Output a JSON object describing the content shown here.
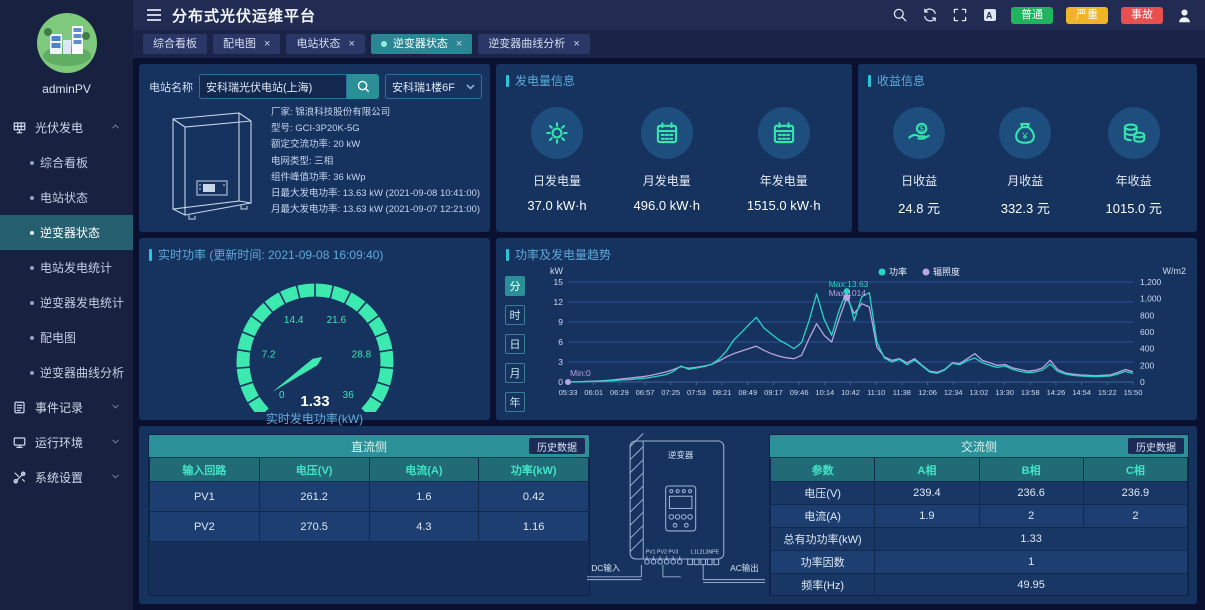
{
  "app": {
    "title": "分布式光伏运维平台",
    "user": "adminPV"
  },
  "header": {
    "icons": [
      "search-icon",
      "refresh-icon",
      "fullscreen-icon",
      "translate-icon",
      "user-icon"
    ],
    "badges": [
      {
        "label": "普通",
        "color": "#21b45f"
      },
      {
        "label": "严重",
        "color": "#f0b429"
      },
      {
        "label": "事故",
        "color": "#ea4f4f"
      }
    ]
  },
  "sidebar": {
    "menu": [
      {
        "label": "光伏发电",
        "icon": "solar-panel-icon",
        "expanded": true,
        "children": [
          "综合看板",
          "电站状态",
          "逆变器状态",
          "电站发电统计",
          "逆变器发电统计",
          "配电图",
          "逆变器曲线分析"
        ],
        "active_child": "逆变器状态"
      },
      {
        "label": "事件记录",
        "icon": "event-log-icon",
        "expanded": false
      },
      {
        "label": "运行环境",
        "icon": "environment-icon",
        "expanded": false
      },
      {
        "label": "系统设置",
        "icon": "settings-icon",
        "expanded": false
      }
    ]
  },
  "tabs": [
    {
      "label": "综合看板",
      "closable": false,
      "active": false
    },
    {
      "label": "配电图",
      "closable": true,
      "active": false
    },
    {
      "label": "电站状态",
      "closable": true,
      "active": false
    },
    {
      "label": "逆变器状态",
      "closable": true,
      "active": true
    },
    {
      "label": "逆变器曲线分析",
      "closable": true,
      "active": false
    }
  ],
  "panels": {
    "station": {
      "label_station_name": "电站名称",
      "search_value": "安科瑞光伏电站(上海)",
      "select_value": "安科瑞1楼6F",
      "specs": [
        {
          "label": "厂家",
          "value": "锦浪科技股份有限公司"
        },
        {
          "label": "型号",
          "value": "GCI-3P20K-5G"
        },
        {
          "label": "额定交流功率",
          "value": "20 kW"
        },
        {
          "label": "电网类型",
          "value": "三相"
        },
        {
          "label": "组件峰值功率",
          "value": "36 kWp"
        },
        {
          "label": "日最大发电功率",
          "value": "13.63 kW (2021-09-08 10:41:00)"
        },
        {
          "label": "月最大发电功率",
          "value": "13.63 kW (2021-09-07 12:21:00)"
        }
      ]
    },
    "energy": {
      "title": "发电量信息",
      "stats": [
        {
          "icon": "sun-icon",
          "label": "日发电量",
          "value": "37.0 kW·h"
        },
        {
          "icon": "calendar-icon",
          "label": "月发电量",
          "value": "496.0 kW·h"
        },
        {
          "icon": "calendar-icon",
          "label": "年发电量",
          "value": "1515.0 kW·h"
        }
      ]
    },
    "revenue": {
      "title": "收益信息",
      "stats": [
        {
          "icon": "hand-coin-icon",
          "label": "日收益",
          "value": "24.8 元"
        },
        {
          "icon": "money-bag-icon",
          "label": "月收益",
          "value": "332.3 元"
        },
        {
          "icon": "coins-icon",
          "label": "年收益",
          "value": "1015.0 元"
        }
      ]
    },
    "gauge": {
      "title": "实时功率 (更新时间: 2021-09-08 16:09:40)",
      "value": 1.33,
      "value_text": "1.33",
      "unit_label": "实时发电功率(kW)",
      "min": 0,
      "max": 36,
      "ticks": [
        0,
        7.2,
        14.4,
        21.6,
        28.8,
        36
      ]
    },
    "trend": {
      "title": "功率及发电量趋势",
      "period_tabs": [
        "分",
        "时",
        "日",
        "月",
        "年"
      ],
      "active_period": "分"
    },
    "dc": {
      "title": "直流侧",
      "history_button": "历史数据",
      "headers": [
        "输入回路",
        "电压(V)",
        "电流(A)",
        "功率(kW)"
      ],
      "rows": [
        [
          "PV1",
          "261.2",
          "1.6",
          "0.42"
        ],
        [
          "PV2",
          "270.5",
          "4.3",
          "1.16"
        ]
      ]
    },
    "ac": {
      "title": "交流侧",
      "history_button": "历史数据",
      "headers": [
        "参数",
        "A相",
        "B相",
        "C相"
      ],
      "rows": [
        {
          "label": "电压(V)",
          "cells": [
            "239.4",
            "236.6",
            "236.9"
          ]
        },
        {
          "label": "电流(A)",
          "cells": [
            "1.9",
            "2",
            "2"
          ]
        },
        {
          "label": "总有功功率(kW)",
          "cells": [
            "1.33"
          ]
        },
        {
          "label": "功率因数",
          "cells": [
            "1"
          ]
        },
        {
          "label": "频率(Hz)",
          "cells": [
            "49.95"
          ]
        }
      ]
    },
    "inverter_diagram": {
      "title": "逆变器",
      "dc_label": "DC输入",
      "ac_label": "AC输出",
      "pv_terminals": [
        "PV1",
        "PV2",
        "PV3"
      ],
      "ac_terminals": "L1L2L3NPE"
    }
  },
  "chart_data": {
    "type": "line",
    "title": "功率及发电量趋势",
    "x_labels": [
      "05:33",
      "06:01",
      "06:29",
      "06:57",
      "07:25",
      "07:53",
      "08:21",
      "08:49",
      "09:17",
      "09:46",
      "10:14",
      "10:42",
      "11:10",
      "11:38",
      "12:06",
      "12:34",
      "13:02",
      "13:30",
      "13:58",
      "14:26",
      "14:54",
      "15:22",
      "15:50"
    ],
    "left_axis": {
      "label": "kW",
      "min": 0,
      "max": 15,
      "ticks": [
        0,
        3,
        6,
        9,
        12,
        15
      ]
    },
    "right_axis": {
      "label": "W/m2",
      "min": 0,
      "max": 1200,
      "ticks": [
        0,
        200,
        400,
        600,
        800,
        1000,
        1200
      ]
    },
    "legend_position": "top",
    "grid": true,
    "annotations": {
      "power_max": "Max:13.63",
      "irr_max": "Max:1014",
      "irr_min": "Min:0"
    },
    "series": [
      {
        "name": "功率",
        "color": "#25d6c5",
        "axis": "left",
        "values": [
          0,
          0.02,
          0.05,
          0.08,
          0.1,
          0.15,
          0.2,
          0.3,
          0.35,
          0.45,
          0.55,
          0.7,
          0.9,
          1.1,
          1.6,
          2.4,
          1.9,
          2.1,
          2.3,
          2.6,
          3.4,
          4.6,
          6.3,
          7.4,
          8.6,
          9.7,
          8.1,
          7.2,
          6.3,
          5.7,
          5.0,
          5.9,
          9.2,
          13.2,
          9.4,
          7.0,
          10.8,
          13.63,
          9.2,
          12.8,
          13.4,
          6.0,
          3.6,
          3.0,
          3.4,
          2.6,
          3.3,
          2.4,
          1.5,
          1.3,
          1.8,
          2.8,
          2.6,
          3.2,
          3.6,
          2.9,
          2.5,
          2.2,
          2.4,
          1.9,
          1.6,
          1.4,
          1.5,
          1.8,
          2.7,
          1.6,
          1.2,
          1.0,
          0.9,
          0.85,
          0.8,
          0.85,
          0.9,
          1.2,
          1.6,
          1.3
        ]
      },
      {
        "name": "辐照度",
        "color": "#b7a4e2",
        "axis": "right",
        "values": [
          0,
          2,
          5,
          8,
          12,
          18,
          25,
          35,
          45,
          55,
          65,
          80,
          100,
          120,
          150,
          185,
          165,
          175,
          190,
          210,
          250,
          300,
          340,
          370,
          400,
          430,
          380,
          340,
          310,
          290,
          280,
          320,
          520,
          700,
          560,
          480,
          760,
          1014,
          820,
          940,
          900,
          420,
          300,
          260,
          280,
          230,
          280,
          200,
          130,
          115,
          150,
          230,
          220,
          280,
          340,
          260,
          230,
          200,
          210,
          170,
          150,
          130,
          140,
          170,
          260,
          150,
          110,
          95,
          85,
          80,
          75,
          80,
          85,
          115,
          150,
          125
        ]
      }
    ]
  }
}
